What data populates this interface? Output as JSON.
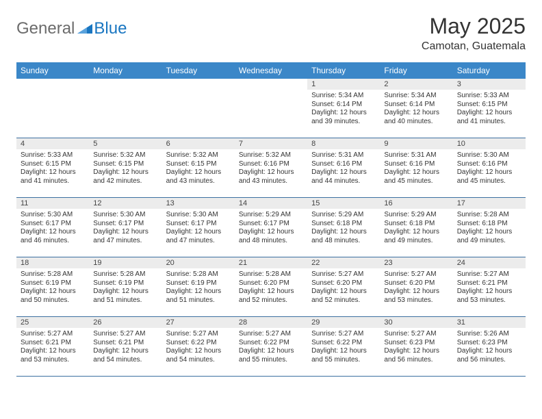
{
  "brand": {
    "gray": "General",
    "blue": "Blue"
  },
  "title": "May 2025",
  "location": "Camotan, Guatemala",
  "colors": {
    "header_bg": "#3b87c8",
    "header_text": "#ffffff",
    "daynum_bg": "#ececec",
    "week_border": "#3b6fa0",
    "logo_gray": "#6b6b6b",
    "logo_blue": "#1976c1"
  },
  "day_names": [
    "Sunday",
    "Monday",
    "Tuesday",
    "Wednesday",
    "Thursday",
    "Friday",
    "Saturday"
  ],
  "weeks": [
    [
      {
        "blank": true
      },
      {
        "blank": true
      },
      {
        "blank": true
      },
      {
        "blank": true
      },
      {
        "day": "1",
        "sunrise": "Sunrise: 5:34 AM",
        "sunset": "Sunset: 6:14 PM",
        "daylight": "Daylight: 12 hours and 39 minutes."
      },
      {
        "day": "2",
        "sunrise": "Sunrise: 5:34 AM",
        "sunset": "Sunset: 6:14 PM",
        "daylight": "Daylight: 12 hours and 40 minutes."
      },
      {
        "day": "3",
        "sunrise": "Sunrise: 5:33 AM",
        "sunset": "Sunset: 6:15 PM",
        "daylight": "Daylight: 12 hours and 41 minutes."
      }
    ],
    [
      {
        "day": "4",
        "sunrise": "Sunrise: 5:33 AM",
        "sunset": "Sunset: 6:15 PM",
        "daylight": "Daylight: 12 hours and 41 minutes."
      },
      {
        "day": "5",
        "sunrise": "Sunrise: 5:32 AM",
        "sunset": "Sunset: 6:15 PM",
        "daylight": "Daylight: 12 hours and 42 minutes."
      },
      {
        "day": "6",
        "sunrise": "Sunrise: 5:32 AM",
        "sunset": "Sunset: 6:15 PM",
        "daylight": "Daylight: 12 hours and 43 minutes."
      },
      {
        "day": "7",
        "sunrise": "Sunrise: 5:32 AM",
        "sunset": "Sunset: 6:16 PM",
        "daylight": "Daylight: 12 hours and 43 minutes."
      },
      {
        "day": "8",
        "sunrise": "Sunrise: 5:31 AM",
        "sunset": "Sunset: 6:16 PM",
        "daylight": "Daylight: 12 hours and 44 minutes."
      },
      {
        "day": "9",
        "sunrise": "Sunrise: 5:31 AM",
        "sunset": "Sunset: 6:16 PM",
        "daylight": "Daylight: 12 hours and 45 minutes."
      },
      {
        "day": "10",
        "sunrise": "Sunrise: 5:30 AM",
        "sunset": "Sunset: 6:16 PM",
        "daylight": "Daylight: 12 hours and 45 minutes."
      }
    ],
    [
      {
        "day": "11",
        "sunrise": "Sunrise: 5:30 AM",
        "sunset": "Sunset: 6:17 PM",
        "daylight": "Daylight: 12 hours and 46 minutes."
      },
      {
        "day": "12",
        "sunrise": "Sunrise: 5:30 AM",
        "sunset": "Sunset: 6:17 PM",
        "daylight": "Daylight: 12 hours and 47 minutes."
      },
      {
        "day": "13",
        "sunrise": "Sunrise: 5:30 AM",
        "sunset": "Sunset: 6:17 PM",
        "daylight": "Daylight: 12 hours and 47 minutes."
      },
      {
        "day": "14",
        "sunrise": "Sunrise: 5:29 AM",
        "sunset": "Sunset: 6:17 PM",
        "daylight": "Daylight: 12 hours and 48 minutes."
      },
      {
        "day": "15",
        "sunrise": "Sunrise: 5:29 AM",
        "sunset": "Sunset: 6:18 PM",
        "daylight": "Daylight: 12 hours and 48 minutes."
      },
      {
        "day": "16",
        "sunrise": "Sunrise: 5:29 AM",
        "sunset": "Sunset: 6:18 PM",
        "daylight": "Daylight: 12 hours and 49 minutes."
      },
      {
        "day": "17",
        "sunrise": "Sunrise: 5:28 AM",
        "sunset": "Sunset: 6:18 PM",
        "daylight": "Daylight: 12 hours and 49 minutes."
      }
    ],
    [
      {
        "day": "18",
        "sunrise": "Sunrise: 5:28 AM",
        "sunset": "Sunset: 6:19 PM",
        "daylight": "Daylight: 12 hours and 50 minutes."
      },
      {
        "day": "19",
        "sunrise": "Sunrise: 5:28 AM",
        "sunset": "Sunset: 6:19 PM",
        "daylight": "Daylight: 12 hours and 51 minutes."
      },
      {
        "day": "20",
        "sunrise": "Sunrise: 5:28 AM",
        "sunset": "Sunset: 6:19 PM",
        "daylight": "Daylight: 12 hours and 51 minutes."
      },
      {
        "day": "21",
        "sunrise": "Sunrise: 5:28 AM",
        "sunset": "Sunset: 6:20 PM",
        "daylight": "Daylight: 12 hours and 52 minutes."
      },
      {
        "day": "22",
        "sunrise": "Sunrise: 5:27 AM",
        "sunset": "Sunset: 6:20 PM",
        "daylight": "Daylight: 12 hours and 52 minutes."
      },
      {
        "day": "23",
        "sunrise": "Sunrise: 5:27 AM",
        "sunset": "Sunset: 6:20 PM",
        "daylight": "Daylight: 12 hours and 53 minutes."
      },
      {
        "day": "24",
        "sunrise": "Sunrise: 5:27 AM",
        "sunset": "Sunset: 6:21 PM",
        "daylight": "Daylight: 12 hours and 53 minutes."
      }
    ],
    [
      {
        "day": "25",
        "sunrise": "Sunrise: 5:27 AM",
        "sunset": "Sunset: 6:21 PM",
        "daylight": "Daylight: 12 hours and 53 minutes."
      },
      {
        "day": "26",
        "sunrise": "Sunrise: 5:27 AM",
        "sunset": "Sunset: 6:21 PM",
        "daylight": "Daylight: 12 hours and 54 minutes."
      },
      {
        "day": "27",
        "sunrise": "Sunrise: 5:27 AM",
        "sunset": "Sunset: 6:22 PM",
        "daylight": "Daylight: 12 hours and 54 minutes."
      },
      {
        "day": "28",
        "sunrise": "Sunrise: 5:27 AM",
        "sunset": "Sunset: 6:22 PM",
        "daylight": "Daylight: 12 hours and 55 minutes."
      },
      {
        "day": "29",
        "sunrise": "Sunrise: 5:27 AM",
        "sunset": "Sunset: 6:22 PM",
        "daylight": "Daylight: 12 hours and 55 minutes."
      },
      {
        "day": "30",
        "sunrise": "Sunrise: 5:27 AM",
        "sunset": "Sunset: 6:23 PM",
        "daylight": "Daylight: 12 hours and 56 minutes."
      },
      {
        "day": "31",
        "sunrise": "Sunrise: 5:26 AM",
        "sunset": "Sunset: 6:23 PM",
        "daylight": "Daylight: 12 hours and 56 minutes."
      }
    ]
  ]
}
